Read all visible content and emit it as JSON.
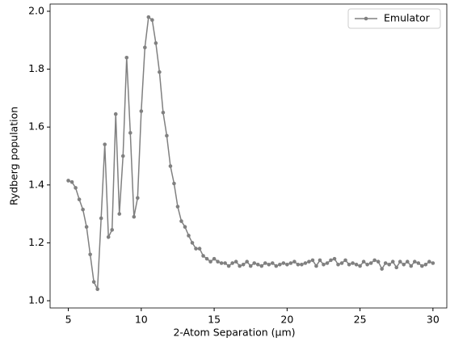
{
  "chart_data": {
    "type": "line",
    "xlabel": "2-Atom Separation (μm)",
    "ylabel": "Rydberg population",
    "x": [
      5,
      5.25,
      5.5,
      5.75,
      6,
      6.25,
      6.5,
      6.75,
      7,
      7.25,
      7.5,
      7.75,
      8,
      8.25,
      8.5,
      8.75,
      9,
      9.25,
      9.5,
      9.75,
      10,
      10.25,
      10.5,
      10.75,
      11,
      11.25,
      11.5,
      11.75,
      12,
      12.25,
      12.5,
      12.75,
      13,
      13.25,
      13.5,
      13.75,
      14,
      14.25,
      14.5,
      14.75,
      15,
      15.25,
      15.5,
      15.75,
      16,
      16.25,
      16.5,
      16.75,
      17,
      17.25,
      17.5,
      17.75,
      18,
      18.25,
      18.5,
      18.75,
      19,
      19.25,
      19.5,
      19.75,
      20,
      20.25,
      20.5,
      20.75,
      21,
      21.25,
      21.5,
      21.75,
      22,
      22.25,
      22.5,
      22.75,
      23,
      23.25,
      23.5,
      23.75,
      24,
      24.25,
      24.5,
      24.75,
      25,
      25.25,
      25.5,
      25.75,
      26,
      26.25,
      26.5,
      26.75,
      27,
      27.25,
      27.5,
      27.75,
      28,
      28.25,
      28.5,
      28.75,
      29,
      29.25,
      29.5,
      29.75,
      30
    ],
    "series": [
      {
        "name": "Emulator",
        "color": "#808080",
        "values": [
          1.415,
          1.41,
          1.39,
          1.35,
          1.315,
          1.255,
          1.16,
          1.065,
          1.04,
          1.285,
          1.54,
          1.22,
          1.245,
          1.645,
          1.3,
          1.5,
          1.84,
          1.58,
          1.29,
          1.355,
          1.655,
          1.875,
          1.98,
          1.97,
          1.89,
          1.79,
          1.65,
          1.57,
          1.465,
          1.405,
          1.325,
          1.275,
          1.255,
          1.225,
          1.2,
          1.18,
          1.18,
          1.155,
          1.145,
          1.135,
          1.145,
          1.135,
          1.13,
          1.13,
          1.12,
          1.13,
          1.135,
          1.12,
          1.125,
          1.135,
          1.12,
          1.13,
          1.125,
          1.12,
          1.13,
          1.125,
          1.13,
          1.12,
          1.125,
          1.13,
          1.125,
          1.13,
          1.135,
          1.125,
          1.125,
          1.13,
          1.135,
          1.14,
          1.12,
          1.14,
          1.125,
          1.13,
          1.14,
          1.145,
          1.125,
          1.13,
          1.14,
          1.125,
          1.13,
          1.125,
          1.12,
          1.135,
          1.125,
          1.13,
          1.14,
          1.135,
          1.11,
          1.13,
          1.125,
          1.135,
          1.115,
          1.135,
          1.125,
          1.135,
          1.12,
          1.135,
          1.13,
          1.12,
          1.125,
          1.135,
          1.13
        ]
      }
    ],
    "xlim": [
      3.75,
      30.95
    ],
    "ylim": [
      0.975,
      2.025
    ],
    "xticks": [
      5,
      10,
      15,
      20,
      25,
      30
    ],
    "yticks": [
      {
        "value": 1.0,
        "label": "1.0"
      },
      {
        "value": 1.2,
        "label": "1.2"
      },
      {
        "value": 1.4,
        "label": "1.4"
      },
      {
        "value": 1.6,
        "label": "1.6"
      },
      {
        "value": 1.8,
        "label": "1.8"
      },
      {
        "value": 2.0,
        "label": "2.0"
      }
    ],
    "legend": "upper right",
    "grid": false
  }
}
